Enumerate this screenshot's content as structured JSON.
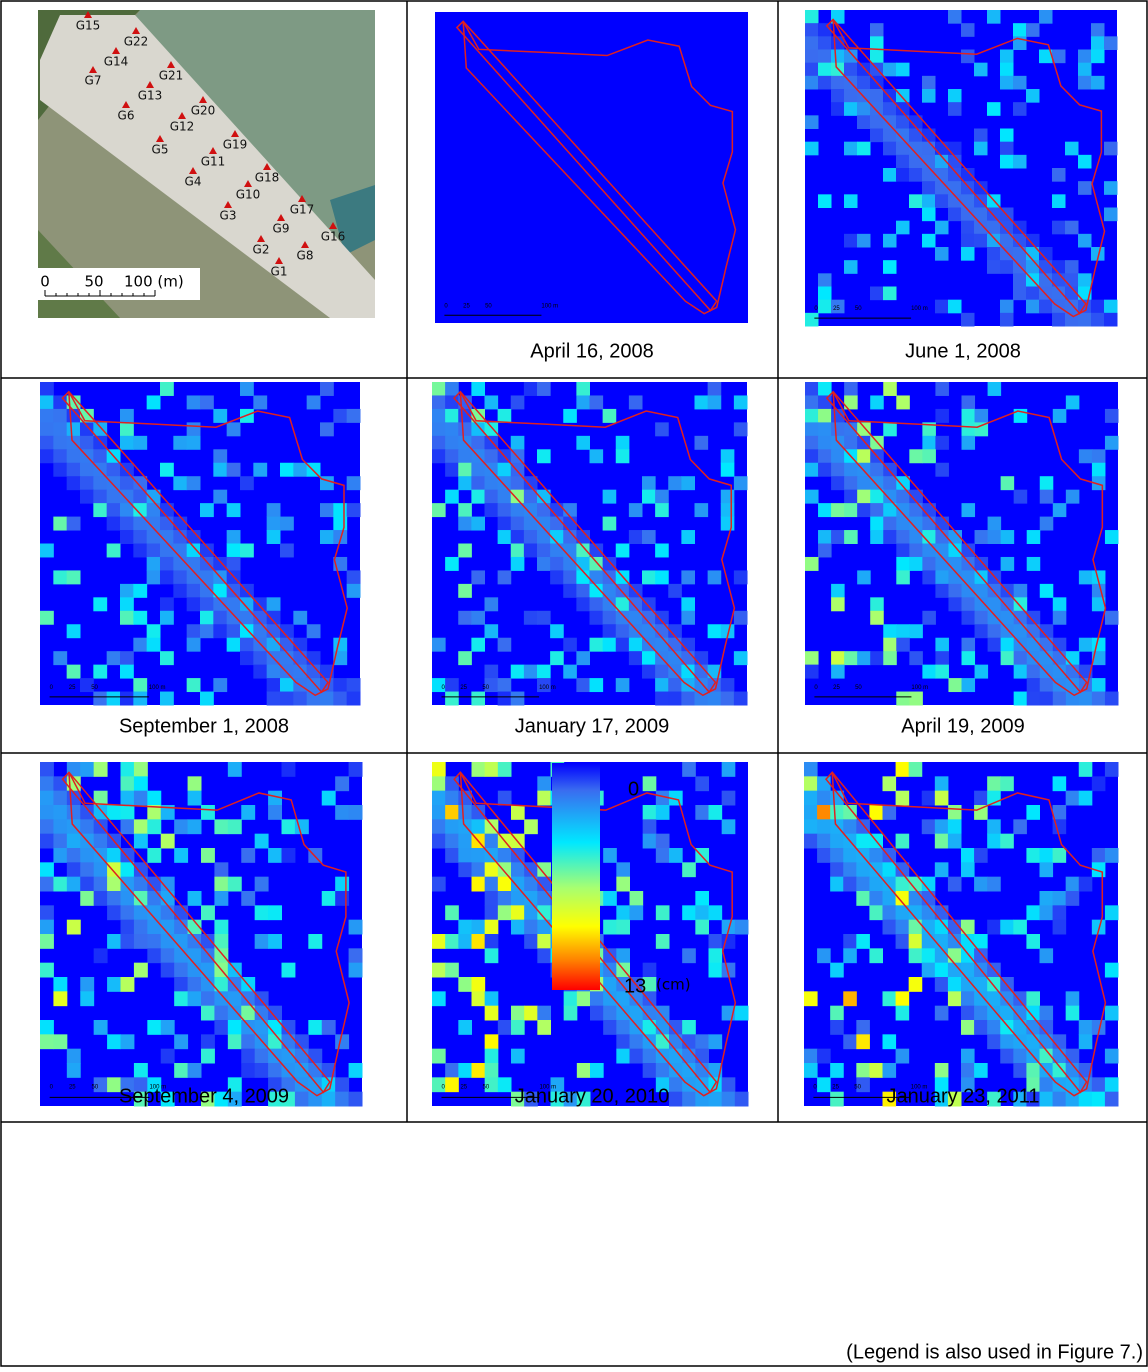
{
  "site_map": {
    "points": [
      "G1",
      "G2",
      "G3",
      "G4",
      "G5",
      "G6",
      "G7",
      "G8",
      "G9",
      "G10",
      "G11",
      "G12",
      "G13",
      "G14",
      "G15",
      "G16",
      "G17",
      "G18",
      "G19",
      "G20",
      "G21",
      "G22"
    ],
    "scale_labels": [
      "0",
      "50",
      "100 (m)"
    ]
  },
  "panels": [
    {
      "caption": "April 16, 2008"
    },
    {
      "caption": "June 1, 2008"
    },
    {
      "caption": "September 1, 2008"
    },
    {
      "caption": "January 17, 2009"
    },
    {
      "caption": "April 19, 2009"
    },
    {
      "caption": "September 4, 2009"
    },
    {
      "caption": "January 20, 2010"
    },
    {
      "caption": "January 23, 2011"
    }
  ],
  "panel_scale_labels": [
    "0",
    "25",
    "50",
    "100 m"
  ],
  "legend": {
    "min": 0,
    "max": 13,
    "unit": "(cm)",
    "note": "(Legend is also used in Figure 7.)"
  }
}
